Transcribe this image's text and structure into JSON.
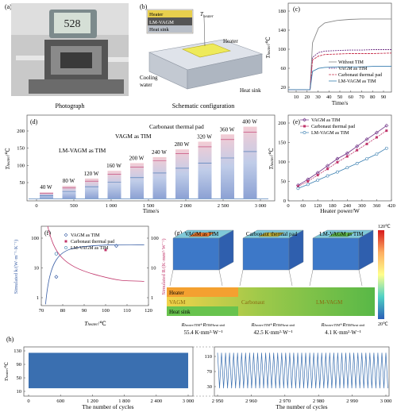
{
  "panels": {
    "a": {
      "letter": "(a)",
      "caption": "Photograph",
      "display": "528"
    },
    "b": {
      "letter": "(b)",
      "caption": "Schematic configuration",
      "layers": [
        "Heater",
        "LM-VAGM",
        "Heat sink"
      ],
      "labels": {
        "t_heater": "T",
        "t_heater_sub": "heater",
        "heater": "Heater",
        "cooling1": "Cooling",
        "cooling2": "water",
        "heat_sink": "Heat sink"
      }
    },
    "c": {
      "letter": "(c)",
      "xlabel": "Time/s",
      "ylabel": "T",
      "ylabel_sub": "heater",
      "ylabel_unit": "/℃",
      "xticks": [
        "10",
        "20",
        "30",
        "40",
        "50",
        "60",
        "70",
        "80",
        "90"
      ],
      "yticks": [
        "20",
        "60",
        "100",
        "140",
        "180"
      ],
      "legend": [
        "Without TIM",
        "VAGM as TIM",
        "Carbonaut thermal pad",
        "LM-VAGM as TIM"
      ]
    },
    "d": {
      "letter": "(d)",
      "xlabel": "Time/s",
      "ylabel": "T",
      "ylabel_sub": "heater",
      "ylabel_unit": "/℃",
      "xticks": [
        "0",
        "500",
        "1 000",
        "1 500",
        "2 000",
        "2 500",
        "3 000"
      ],
      "yticks": [
        "50",
        "100",
        "150",
        "200"
      ],
      "power_labels": [
        "40 W",
        "80 W",
        "120 W",
        "160 W",
        "200 W",
        "240 W",
        "280 W",
        "320 W",
        "360 W",
        "400 W"
      ],
      "annotations": [
        "LM-VAGM as TIM",
        "VAGM as TIM",
        "Carbonaut thermal pad"
      ]
    },
    "e": {
      "letter": "(e)",
      "xlabel": "Heater power/W",
      "ylabel": "T",
      "ylabel_sub": "heater",
      "ylabel_unit": "/℃",
      "xticks": [
        "0",
        "60",
        "120",
        "180",
        "240",
        "300",
        "360",
        "420"
      ],
      "yticks": [
        "0",
        "50",
        "100",
        "150",
        "200"
      ],
      "legend": [
        "VAGM as TIM",
        "Carbonaut thermal pad",
        "LM-VAGM as TIM"
      ]
    },
    "f": {
      "letter": "(f)",
      "xlabel": "T",
      "xlabel_sub": "heater",
      "xlabel_unit": "/℃",
      "ylabel_left": "Simulated k",
      "ylabel_left_unit": "/(W·m⁻¹·K⁻¹)",
      "ylabel_right": "Simulated R",
      "ylabel_right_unit": "/(K·mm²·W⁻¹)",
      "xticks": [
        "70",
        "80",
        "90",
        "100",
        "110",
        "120"
      ],
      "yticks_left": [
        "1",
        "10",
        "100"
      ],
      "yticks_right": [
        "1",
        "10",
        "100"
      ],
      "legend": [
        "VAGM as TIM",
        "Carbonaut thermal pad",
        "LM-VAGM as TIM"
      ]
    },
    "g": {
      "letter": "(g)",
      "titles": [
        "VAGM as TIM",
        "Carbonaut thermal pad",
        "LM-VAGM as TIM"
      ],
      "layer_names": [
        "Heater",
        "VAGM",
        "Heat sink"
      ],
      "middle_layers": [
        "Carbonaut",
        "LM-VAGM"
      ],
      "resistance_label": "R",
      "resistance_sub1": "heater/TIM",
      "resistance_sub2": "TIM/heat sink",
      "values": [
        "55.4 K·mm²·W⁻¹",
        "42.5 K·mm²·W⁻¹",
        "4.1 K·mm²·W⁻¹"
      ],
      "colorbar_max": "120℃",
      "colorbar_min": "20℃"
    },
    "h": {
      "letter": "(h)",
      "xlabel": "The number of cycles",
      "xticks_left": [
        "0",
        "600",
        "1 200",
        "1 800",
        "2 400",
        "3 000"
      ],
      "xticks_right": [
        "2 950",
        "2 960",
        "2 970",
        "2 980",
        "2 990",
        "3 000"
      ],
      "yticks": [
        "10",
        "50",
        "90",
        "130"
      ],
      "yticks_right": [
        "30",
        "70",
        "110"
      ],
      "ylabel": "T",
      "ylabel_sub": "heater",
      "ylabel_unit": "/℃"
    }
  },
  "chart_data": [
    {
      "type": "line",
      "panel": "c",
      "x_range": [
        10,
        95
      ],
      "y_range": [
        20,
        200
      ],
      "series": [
        {
          "name": "Without TIM",
          "x": [
            10,
            28,
            30,
            35,
            40,
            50,
            60,
            70,
            80,
            95
          ],
          "y": [
            25,
            25,
            120,
            150,
            160,
            165,
            167,
            168,
            168,
            168
          ]
        },
        {
          "name": "VAGM as TIM",
          "x": [
            10,
            28,
            30,
            35,
            40,
            50,
            60,
            70,
            80,
            95
          ],
          "y": [
            25,
            25,
            90,
            100,
            103,
            104,
            105,
            105,
            106,
            106
          ]
        },
        {
          "name": "Carbonaut thermal pad",
          "x": [
            10,
            28,
            30,
            35,
            40,
            50,
            60,
            70,
            80,
            95
          ],
          "y": [
            25,
            25,
            85,
            93,
            96,
            97,
            98,
            98,
            98,
            99
          ]
        },
        {
          "name": "LM-VAGM as TIM",
          "x": [
            10,
            28,
            30,
            35,
            40,
            50,
            60,
            70,
            80,
            95
          ],
          "y": [
            25,
            25,
            62,
            68,
            70,
            71,
            71,
            71,
            72,
            72
          ]
        }
      ]
    },
    {
      "type": "line",
      "panel": "e",
      "x_range": [
        0,
        420
      ],
      "y_range": [
        0,
        220
      ],
      "series": [
        {
          "name": "VAGM as TIM",
          "x": [
            40,
            80,
            120,
            160,
            200,
            240,
            280,
            320,
            360,
            400
          ],
          "y": [
            40,
            55,
            72,
            90,
            108,
            122,
            140,
            158,
            175,
            193
          ]
        },
        {
          "name": "Carbonaut thermal pad",
          "x": [
            40,
            80,
            120,
            160,
            200,
            240,
            280,
            320,
            360,
            400
          ],
          "y": [
            37,
            50,
            66,
            82,
            99,
            114,
            130,
            146,
            163,
            180
          ]
        },
        {
          "name": "LM-VAGM as TIM",
          "x": [
            40,
            80,
            120,
            160,
            200,
            240,
            280,
            320,
            360,
            400
          ],
          "y": [
            32,
            42,
            53,
            64,
            74,
            85,
            96,
            108,
            120,
            135
          ]
        }
      ]
    },
    {
      "type": "scatter",
      "panel": "f",
      "x_range": [
        70,
        120
      ],
      "series": [
        {
          "name": "VAGM as TIM",
          "x": [
            77,
            105
          ],
          "y_k": [
            5,
            55
          ],
          "y_R": [
            50,
            4
          ]
        },
        {
          "name": "Carbonaut thermal pad",
          "x": [
            100
          ],
          "y_R": [
            40
          ]
        },
        {
          "name": "LM-VAGM as TIM",
          "x": [
            75,
            77
          ],
          "y_k": [
            180,
            30
          ]
        }
      ]
    },
    {
      "type": "line",
      "panel": "d",
      "x_range": [
        0,
        3250
      ],
      "y_range": [
        20,
        220
      ],
      "steps": {
        "powers": [
          40,
          80,
          120,
          160,
          200,
          240,
          280,
          320,
          360,
          400
        ],
        "VAGM": [
          40,
          55,
          72,
          90,
          108,
          122,
          140,
          158,
          175,
          193
        ],
        "Carbonaut": [
          37,
          50,
          66,
          82,
          99,
          114,
          130,
          146,
          163,
          180
        ],
        "LM-VAGM": [
          32,
          42,
          53,
          64,
          74,
          85,
          96,
          108,
          120,
          135
        ]
      }
    },
    {
      "type": "line",
      "panel": "h",
      "cycles": 3000,
      "y_range": [
        10,
        135
      ],
      "low": 30,
      "high": 120
    }
  ]
}
